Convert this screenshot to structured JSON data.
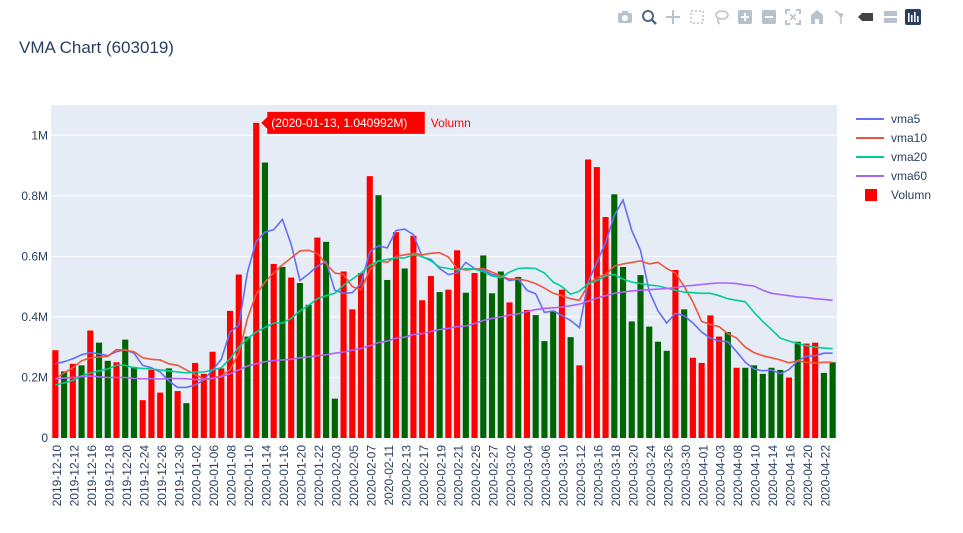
{
  "modebar": {
    "icons": [
      "camera-icon",
      "zoom-icon",
      "pan-icon",
      "box-select-icon",
      "lasso-icon",
      "zoom-in-icon",
      "zoom-out-icon",
      "autoscale-icon",
      "reset-axes-icon",
      "spike-lines-icon",
      "hover-closest-icon",
      "hover-compare-icon",
      "plotly-logo"
    ]
  },
  "colors": {
    "rise": "#ff0000",
    "fall": "#006400",
    "vma5": "#636efa",
    "vma10": "#ef553b",
    "vma20": "#00cc96",
    "vma60": "#ab63fa",
    "plot_bg": "#e5ecf6",
    "text": "#2a3f5f"
  },
  "chart_data": {
    "type": "bar",
    "title": "VMA Chart (603019)",
    "xlabel": "",
    "ylabel": "",
    "ylim": [
      0,
      1100000
    ],
    "y_ticks": [
      {
        "value": 0,
        "label": "0"
      },
      {
        "value": 200000,
        "label": "0.2M"
      },
      {
        "value": 400000,
        "label": "0.4M"
      },
      {
        "value": 600000,
        "label": "0.6M"
      },
      {
        "value": 800000,
        "label": "0.8M"
      },
      {
        "value": 1000000,
        "label": "1M"
      }
    ],
    "grid": true,
    "legend_position": "top-right",
    "x_tick_labels": [
      "2019-12-10",
      "2019-12-12",
      "2019-12-16",
      "2019-12-18",
      "2019-12-20",
      "2019-12-24",
      "2019-12-26",
      "2019-12-30",
      "2020-01-02",
      "2020-01-06",
      "2020-01-08",
      "2020-01-10",
      "2020-01-14",
      "2020-01-16",
      "2020-01-20",
      "2020-01-22",
      "2020-02-03",
      "2020-02-05",
      "2020-02-07",
      "2020-02-11",
      "2020-02-13",
      "2020-02-17",
      "2020-02-19",
      "2020-02-21",
      "2020-02-25",
      "2020-02-27",
      "2020-03-02",
      "2020-03-04",
      "2020-03-06",
      "2020-03-10",
      "2020-03-12",
      "2020-03-16",
      "2020-03-18",
      "2020-03-20",
      "2020-03-24",
      "2020-03-26",
      "2020-03-30",
      "2020-04-01",
      "2020-04-03",
      "2020-04-08",
      "2020-04-10",
      "2020-04-14",
      "2020-04-16",
      "2020-04-20",
      "2020-04-22"
    ],
    "volume": {
      "name": "Volumn",
      "values": [
        290000,
        220000,
        245000,
        240000,
        355000,
        315000,
        255000,
        250000,
        325000,
        235000,
        125000,
        225000,
        150000,
        230000,
        155000,
        115000,
        248000,
        212000,
        285000,
        230000,
        420000,
        540000,
        335000,
        1040992,
        910000,
        575000,
        565000,
        530000,
        512000,
        440000,
        662000,
        648000,
        130000,
        550000,
        425000,
        545000,
        865000,
        802000,
        522000,
        680000,
        560000,
        668000,
        455000,
        535000,
        482000,
        490000,
        620000,
        480000,
        545000,
        603000,
        478000,
        550000,
        448000,
        532000,
        423000,
        406000,
        320000,
        420000,
        490000,
        333000,
        240000,
        920000,
        895000,
        730000,
        805000,
        565000,
        385000,
        538000,
        368000,
        318000,
        288000,
        555000,
        425000,
        265000,
        248000,
        405000,
        335000,
        350000,
        232000,
        232000,
        240000,
        212000,
        232000,
        225000,
        200000,
        318000,
        312000,
        315000,
        215000,
        250000
      ],
      "rising": [
        true,
        false,
        true,
        false,
        true,
        false,
        false,
        true,
        false,
        false,
        true,
        true,
        true,
        false,
        true,
        false,
        true,
        true,
        true,
        true,
        true,
        true,
        false,
        true,
        false,
        true,
        false,
        true,
        false,
        false,
        true,
        false,
        false,
        true,
        true,
        true,
        true,
        false,
        false,
        true,
        false,
        true,
        true,
        true,
        false,
        true,
        true,
        false,
        true,
        false,
        false,
        false,
        true,
        false,
        true,
        false,
        false,
        false,
        true,
        false,
        true,
        true,
        true,
        true,
        false,
        false,
        false,
        false,
        false,
        false,
        false,
        true,
        false,
        true,
        true,
        true,
        true,
        false,
        true,
        false,
        false,
        false,
        false,
        false,
        true,
        false,
        true,
        true,
        false,
        false
      ]
    },
    "series": [
      {
        "name": "vma5",
        "values": [
          245000,
          252000,
          262000,
          275000,
          282000,
          278000,
          272000,
          285000,
          292000,
          280000,
          240000,
          232000,
          218000,
          188000,
          167000,
          167000,
          175000,
          192000,
          225000,
          260000,
          350000,
          372000,
          548000,
          650000,
          680000,
          688000,
          722000,
          640000,
          520000,
          542000,
          568000,
          583000,
          488000,
          478000,
          480000,
          510000,
          615000,
          635000,
          628000,
          685000,
          690000,
          672000,
          598000,
          590000,
          560000,
          540000,
          545000,
          580000,
          560000,
          555000,
          540000,
          535000,
          520000,
          525000,
          488000,
          476000,
          415000,
          420000,
          405000,
          388000,
          365000,
          515000,
          580000,
          645000,
          735000,
          786000,
          685000,
          620000,
          485000,
          420000,
          380000,
          412000,
          404000,
          380000,
          350000,
          330000,
          320000,
          318000,
          285000,
          250000,
          228000,
          222000,
          225000,
          212000,
          226000,
          255000,
          270000,
          272000,
          280000,
          280000
        ]
      },
      {
        "name": "vma10",
        "values": [
          195000,
          215000,
          232000,
          255000,
          265000,
          268000,
          270000,
          292000,
          290000,
          285000,
          265000,
          260000,
          258000,
          245000,
          240000,
          225000,
          210000,
          195000,
          198000,
          205000,
          225000,
          280000,
          395000,
          475000,
          515000,
          545000,
          572000,
          595000,
          618000,
          620000,
          610000,
          575000,
          545000,
          540000,
          500000,
          490000,
          555000,
          585000,
          580000,
          600000,
          605000,
          610000,
          605000,
          610000,
          612000,
          598000,
          560000,
          555000,
          558000,
          560000,
          548000,
          535000,
          525000,
          525000,
          520000,
          510000,
          495000,
          478000,
          470000,
          460000,
          455000,
          505000,
          530000,
          540000,
          568000,
          575000,
          580000,
          585000,
          575000,
          580000,
          560000,
          545000,
          500000,
          450000,
          385000,
          375000,
          368000,
          345000,
          330000,
          300000,
          282000,
          272000,
          265000,
          258000,
          248000,
          255000,
          250000,
          248000,
          250000,
          250000
        ]
      },
      {
        "name": "vma20",
        "values": [
          175000,
          182000,
          190000,
          205000,
          215000,
          222000,
          228000,
          240000,
          240000,
          232000,
          230000,
          228000,
          225000,
          222000,
          218000,
          215000,
          218000,
          218000,
          225000,
          232000,
          262000,
          300000,
          328000,
          350000,
          365000,
          380000,
          380000,
          395000,
          420000,
          438000,
          460000,
          470000,
          478000,
          505000,
          525000,
          545000,
          570000,
          585000,
          590000,
          595000,
          595000,
          605000,
          600000,
          585000,
          565000,
          560000,
          555000,
          560000,
          558000,
          550000,
          535000,
          530000,
          548000,
          560000,
          562000,
          560000,
          545000,
          515000,
          500000,
          475000,
          485000,
          510000,
          520000,
          535000,
          540000,
          525000,
          515000,
          510000,
          505000,
          502000,
          495000,
          488000,
          482000,
          480000,
          478000,
          478000,
          470000,
          460000,
          455000,
          450000,
          415000,
          385000,
          358000,
          330000,
          320000,
          312000,
          305000,
          300000,
          297000,
          295000
        ]
      },
      {
        "name": "vma60",
        "values": [
          195000,
          198000,
          200000,
          202000,
          205000,
          202000,
          200000,
          200000,
          200000,
          197000,
          196000,
          196000,
          195000,
          197000,
          197000,
          196000,
          193000,
          193000,
          197000,
          202000,
          212000,
          225000,
          238000,
          245000,
          252000,
          256000,
          258000,
          260000,
          265000,
          268000,
          272000,
          275000,
          280000,
          284000,
          290000,
          296000,
          305000,
          315000,
          320000,
          330000,
          333000,
          342000,
          345000,
          352000,
          358000,
          362000,
          368000,
          370000,
          378000,
          388000,
          395000,
          400000,
          406000,
          410000,
          418000,
          424000,
          428000,
          430000,
          432000,
          437000,
          442000,
          452000,
          462000,
          470000,
          478000,
          482000,
          486000,
          488000,
          490000,
          492000,
          494000,
          497000,
          502000,
          504000,
          507000,
          510000,
          512000,
          512000,
          510000,
          505000,
          502000,
          488000,
          478000,
          474000,
          470000,
          466000,
          464000,
          460000,
          458000,
          455000
        ]
      }
    ],
    "hover": {
      "label": "(2020-01-13, 1.040992M)",
      "name": "Volumn"
    }
  }
}
